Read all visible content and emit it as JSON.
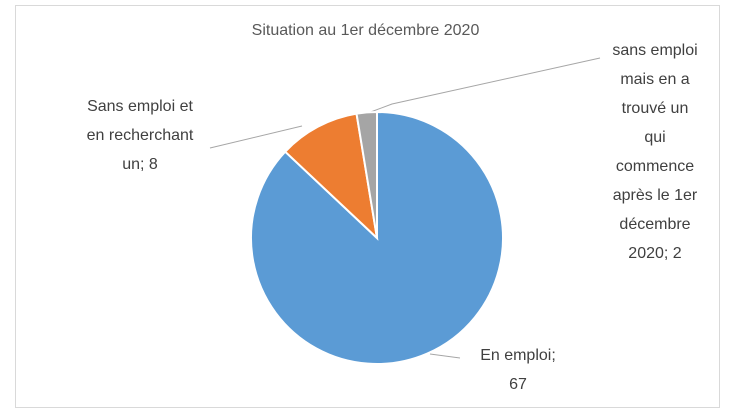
{
  "chart_data": {
    "type": "pie",
    "title": "Situation au 1er décembre 2020",
    "categories": [
      "En emploi",
      "Sans emploi et en recherchant un",
      "sans emploi mais en a trouvé un qui commence après le 1er décembre 2020"
    ],
    "values": [
      67,
      8,
      2
    ],
    "colors": [
      "#5b9bd5",
      "#ed7d31",
      "#a5a5a5"
    ],
    "label_separator": "; "
  }
}
